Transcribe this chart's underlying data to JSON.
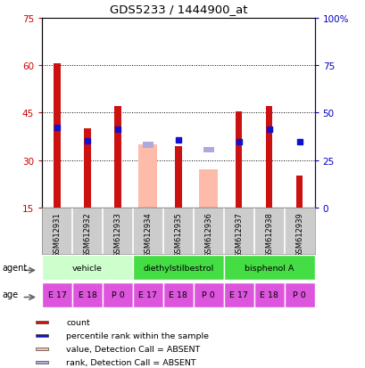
{
  "title": "GDS5233 / 1444900_at",
  "samples": [
    "GSM612931",
    "GSM612932",
    "GSM612933",
    "GSM612934",
    "GSM612935",
    "GSM612936",
    "GSM612937",
    "GSM612938",
    "GSM612939"
  ],
  "count_values": [
    60.5,
    40.0,
    47.0,
    null,
    34.5,
    null,
    45.5,
    47.0,
    25.0
  ],
  "rank_values": [
    42.0,
    35.0,
    41.0,
    null,
    35.5,
    null,
    34.5,
    41.0,
    null
  ],
  "absent_value_values": [
    null,
    null,
    null,
    35.0,
    null,
    27.0,
    null,
    null,
    null
  ],
  "absent_rank_values": [
    null,
    null,
    null,
    33.0,
    null,
    30.5,
    null,
    null,
    null
  ],
  "blue_sq_standalone": [
    null,
    null,
    null,
    null,
    null,
    null,
    null,
    null,
    34.5
  ],
  "agents": [
    {
      "label": "vehicle",
      "start": 0,
      "end": 3,
      "color": "#ccffcc"
    },
    {
      "label": "diethylstilbestrol",
      "start": 3,
      "end": 6,
      "color": "#44dd44"
    },
    {
      "label": "bisphenol A",
      "start": 6,
      "end": 9,
      "color": "#44dd44"
    }
  ],
  "ages": [
    "E 17",
    "E 18",
    "P 0",
    "E 17",
    "E 18",
    "P 0",
    "E 17",
    "E 18",
    "P 0"
  ],
  "age_color": "#dd55dd",
  "ylim_left": [
    15,
    75
  ],
  "ylim_right": [
    0,
    100
  ],
  "yticks_left": [
    15,
    30,
    45,
    60,
    75
  ],
  "yticks_right": [
    0,
    25,
    50,
    75,
    100
  ],
  "ytick_labels_right": [
    "0",
    "25",
    "50",
    "75",
    "100%"
  ],
  "left_color": "#cc0000",
  "right_color": "#0000bb",
  "bar_color_count": "#cc1111",
  "bar_color_rank": "#1111cc",
  "bar_color_absent_value": "#ffbbaa",
  "bar_color_absent_rank": "#aaaadd",
  "legend_labels": [
    "count",
    "percentile rank within the sample",
    "value, Detection Call = ABSENT",
    "rank, Detection Call = ABSENT"
  ],
  "legend_colors": [
    "#cc1111",
    "#1111cc",
    "#ffbbaa",
    "#aaaadd"
  ]
}
